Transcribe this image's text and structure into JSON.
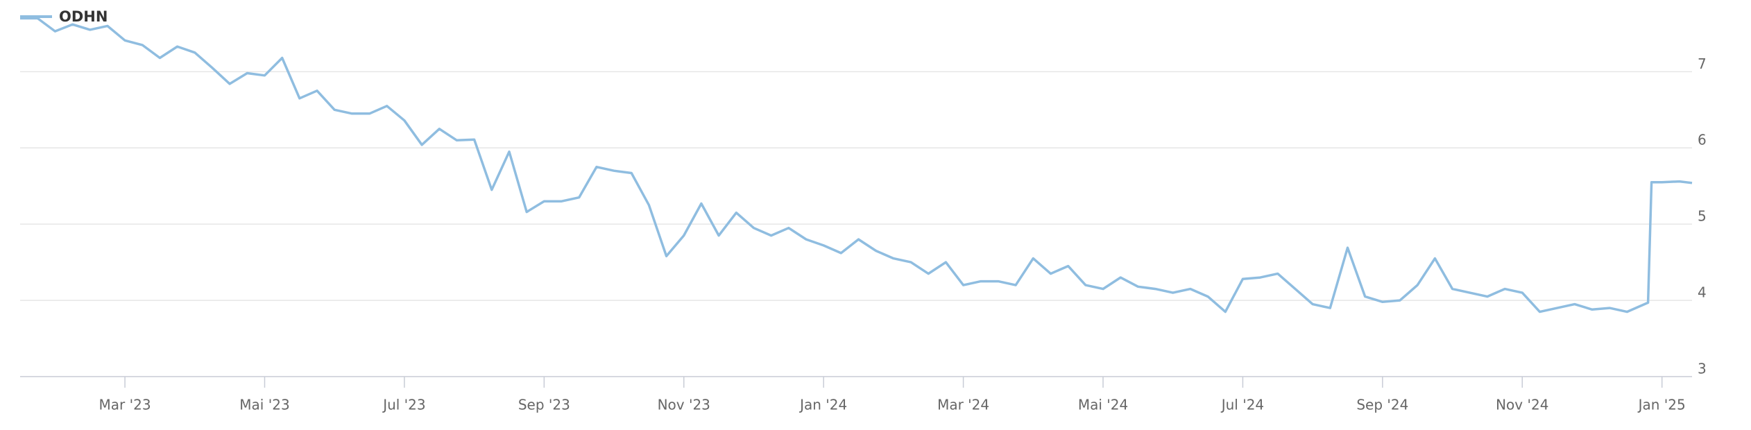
{
  "chart_data": {
    "type": "line",
    "x": [
      0.5,
      0.75,
      1,
      1.25,
      1.5,
      1.75,
      2,
      2.25,
      2.5,
      2.75,
      3,
      3.25,
      3.5,
      3.75,
      4,
      4.25,
      4.5,
      4.75,
      5,
      5.25,
      5.5,
      5.75,
      6,
      6.25,
      6.5,
      6.75,
      7,
      7.25,
      7.5,
      7.75,
      8,
      8.25,
      8.5,
      8.75,
      9,
      9.25,
      9.5,
      9.75,
      10,
      10.25,
      10.5,
      10.75,
      11,
      11.25,
      11.5,
      11.75,
      12,
      12.25,
      12.5,
      12.75,
      13,
      13.25,
      13.5,
      13.75,
      14,
      14.25,
      14.5,
      14.75,
      15,
      15.25,
      15.5,
      15.75,
      16,
      16.25,
      16.5,
      16.75,
      17,
      17.25,
      17.5,
      17.75,
      18,
      18.25,
      18.5,
      18.75,
      19,
      19.25,
      19.5,
      19.75,
      20,
      20.25,
      20.5,
      20.75,
      21,
      21.25,
      21.5,
      21.75,
      22,
      22.25,
      22.5,
      22.75,
      23,
      23.25,
      23.5,
      23.8,
      23.85,
      24,
      24.25,
      24.43
    ],
    "series": [
      {
        "name": "ODHN",
        "color": "#8fbde0",
        "values": [
          7.7,
          7.7,
          7.53,
          7.62,
          7.55,
          7.6,
          7.41,
          7.35,
          7.18,
          7.33,
          7.25,
          7.05,
          6.84,
          6.98,
          6.95,
          7.18,
          6.65,
          6.75,
          6.5,
          6.45,
          6.45,
          6.55,
          6.36,
          6.04,
          6.25,
          6.1,
          6.11,
          5.45,
          5.95,
          5.16,
          5.3,
          5.3,
          5.35,
          5.75,
          5.7,
          5.67,
          5.25,
          4.58,
          4.85,
          5.27,
          4.85,
          5.15,
          4.95,
          4.85,
          4.95,
          4.8,
          4.72,
          4.62,
          4.8,
          4.65,
          4.55,
          4.5,
          4.35,
          4.5,
          4.2,
          4.25,
          4.25,
          4.2,
          4.55,
          4.35,
          4.45,
          4.2,
          4.15,
          4.3,
          4.18,
          4.15,
          4.1,
          4.15,
          4.05,
          3.85,
          4.28,
          4.3,
          4.35,
          4.15,
          3.95,
          3.9,
          4.69,
          4.05,
          3.98,
          4.0,
          4.2,
          4.55,
          4.15,
          4.1,
          4.05,
          4.15,
          4.1,
          3.85,
          3.9,
          3.95,
          3.88,
          3.9,
          3.85,
          3.97,
          5.55,
          5.55,
          5.56,
          5.54
        ]
      }
    ],
    "xlim": [
      0.5,
      24.43
    ],
    "xticks": [
      {
        "value": 2,
        "label": "Mar '23"
      },
      {
        "value": 4,
        "label": "Mai '23"
      },
      {
        "value": 6,
        "label": "Jul '23"
      },
      {
        "value": 8,
        "label": "Sep '23"
      },
      {
        "value": 10,
        "label": "Nov '23"
      },
      {
        "value": 12,
        "label": "Jan '24"
      },
      {
        "value": 14,
        "label": "Mar '24"
      },
      {
        "value": 16,
        "label": "Mai '24"
      },
      {
        "value": 18,
        "label": "Jul '24"
      },
      {
        "value": 20,
        "label": "Sep '24"
      },
      {
        "value": 22,
        "label": "Nov '24"
      },
      {
        "value": 24,
        "label": "Jan '25"
      }
    ],
    "ylim": [
      3,
      7.94
    ],
    "yticks": [
      3,
      4,
      5,
      6,
      7
    ],
    "grid": true
  }
}
